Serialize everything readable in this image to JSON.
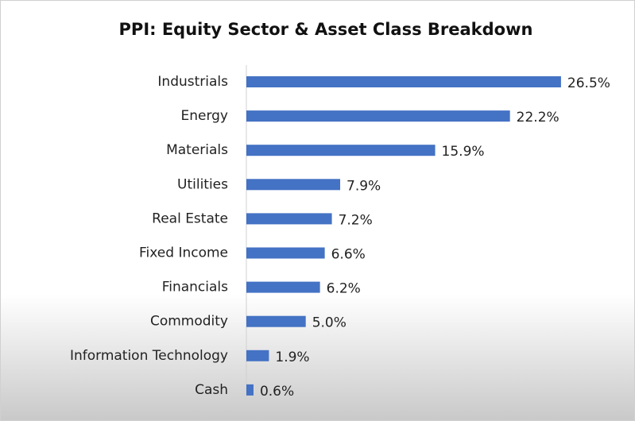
{
  "chart_data": {
    "type": "hbar",
    "title": "PPI: Equity Sector & Asset Class Breakdown",
    "categories": [
      "Industrials",
      "Energy",
      "Materials",
      "Utilities",
      "Real Estate",
      "Fixed Income",
      "Financials",
      "Commodity",
      "Information Technology",
      "Cash"
    ],
    "values": [
      26.5,
      22.2,
      15.9,
      7.9,
      7.2,
      6.6,
      6.2,
      5.0,
      1.9,
      0.6
    ],
    "value_labels": [
      "26.5%",
      "22.2%",
      "15.9%",
      "7.9%",
      "7.2%",
      "6.6%",
      "6.2%",
      "5.0%",
      "1.9%",
      "0.6%"
    ],
    "color": "#4472c4"
  }
}
